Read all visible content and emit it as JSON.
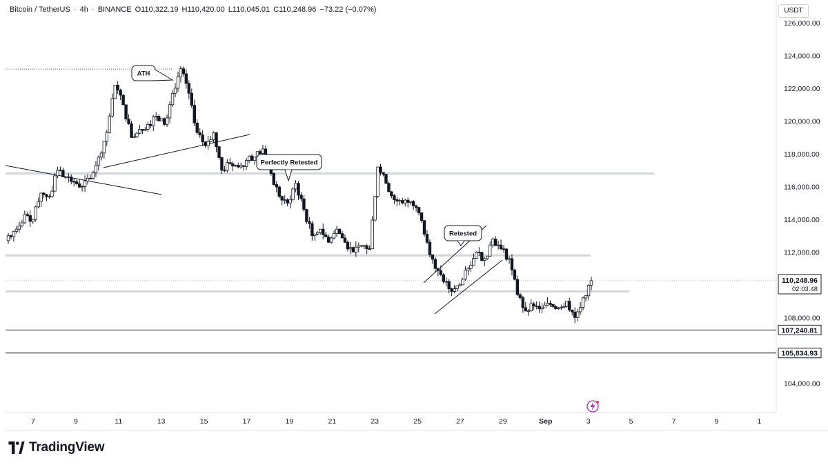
{
  "header": {
    "symbol": "Bitcoin / TetherUS",
    "interval": "4h",
    "exchange": "BINANCE",
    "open": "O110,322.19",
    "high": "H110,420.00",
    "low": "L110,045.01",
    "close": "C110,248.96",
    "change": "−73.22 (−0.07%)"
  },
  "price_scale_unit": "USDT",
  "brand": {
    "name": "TradingView"
  },
  "colors": {
    "candle": "#131722",
    "grid_level": "#d1d4dc",
    "annotation_stroke": "#131722",
    "lightning_icon": "#9c27b0"
  },
  "chart_data": {
    "type": "candlestick",
    "title": "",
    "xlabel": "",
    "ylabel": "",
    "ylim": [
      102200,
      127400
    ],
    "xlim": [
      "Aug 5 12:00",
      "Sep 8 16:00"
    ],
    "x_ticks": [
      "7",
      "9",
      "11",
      "13",
      "15",
      "17",
      "19",
      "21",
      "23",
      "25",
      "27",
      "29",
      "Sep",
      "3",
      "5",
      "7",
      "9",
      "1"
    ],
    "y_ticks": [
      104000,
      106000,
      108000,
      110000,
      112000,
      114000,
      116000,
      118000,
      120000,
      122000,
      124000,
      126000
    ],
    "y_tick_labels": [
      "104,000.00",
      "106,000.00",
      "108,000.00",
      "110,000.00",
      "112,000.00",
      "114,000.00",
      "116,000.00",
      "118,000.00",
      "120,000.00",
      "122,000.00",
      "124,000.00",
      "126,000.00"
    ],
    "horizontal_levels": [
      116800,
      111800,
      109600
    ],
    "support_lines": [
      {
        "price": 107240.81,
        "label": "107,240.81"
      },
      {
        "price": 105834.93,
        "label": "105,834.93"
      }
    ],
    "last_price": {
      "price": 110248.96,
      "label": "110,248.96",
      "countdown": "02:03:48"
    },
    "annotations": [
      {
        "text": "ATH"
      },
      {
        "text": "Perfectly Retested"
      },
      {
        "text": "Retested"
      }
    ],
    "close_path": [
      113000,
      113400,
      114300,
      114000,
      115600,
      115400,
      117000,
      116600,
      116300,
      116000,
      116500,
      117800,
      119300,
      122200,
      121000,
      119000,
      119500,
      119800,
      120300,
      119800,
      121700,
      123200,
      121700,
      119300,
      118500,
      119300,
      117000,
      117400,
      117200,
      117600,
      117800,
      118300,
      116800,
      115400,
      115000,
      116200,
      114600,
      113000,
      113400,
      112600,
      113400,
      112600,
      112000,
      112400,
      112200,
      117200,
      116200,
      115200,
      115000,
      115100,
      114400,
      112600,
      111000,
      110200,
      109600,
      110000,
      111000,
      112000,
      111600,
      112800,
      112200,
      111600,
      109400,
      108400,
      108700,
      108600,
      108800,
      108600,
      109000,
      108000,
      109200,
      110248.96
    ]
  }
}
